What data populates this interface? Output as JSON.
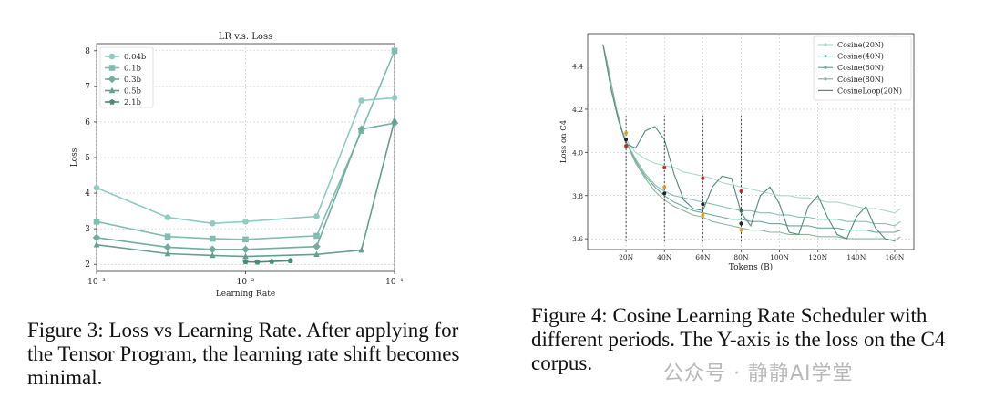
{
  "chart_data": [
    {
      "type": "line",
      "title": "LR v.s. Loss",
      "xlabel": "Learning Rate",
      "ylabel": "Loss",
      "x_scale": "log",
      "xlim": [
        0.001,
        0.1
      ],
      "ylim": [
        1.8,
        8.2
      ],
      "x_ticks": [
        "10⁻³",
        "10⁻²",
        "10⁻¹"
      ],
      "y_ticks": [
        "2",
        "3",
        "4",
        "5",
        "6",
        "7",
        "8"
      ],
      "grid": true,
      "legend_position": "top-left",
      "series": [
        {
          "name": "0.04b",
          "marker": "circle",
          "color": "#8ecbc1",
          "x": [
            0.001,
            0.003,
            0.006,
            0.01,
            0.03,
            0.06,
            0.1
          ],
          "y": [
            4.15,
            3.32,
            3.15,
            3.2,
            3.35,
            6.6,
            6.68
          ]
        },
        {
          "name": "0.1b",
          "marker": "square",
          "color": "#7fbdb1",
          "x": [
            0.001,
            0.003,
            0.006,
            0.01,
            0.03,
            0.06,
            0.1
          ],
          "y": [
            3.2,
            2.78,
            2.72,
            2.7,
            2.8,
            5.75,
            8.0
          ]
        },
        {
          "name": "0.3b",
          "marker": "diamond",
          "color": "#70ae9f",
          "x": [
            0.001,
            0.003,
            0.006,
            0.01,
            0.03,
            0.06,
            0.1
          ],
          "y": [
            2.75,
            2.48,
            2.42,
            2.42,
            2.5,
            5.8,
            5.97
          ]
        },
        {
          "name": "0.5b",
          "marker": "triangle",
          "color": "#639f90",
          "x": [
            0.001,
            0.003,
            0.006,
            0.01,
            0.03,
            0.06,
            0.1
          ],
          "y": [
            2.55,
            2.3,
            2.25,
            2.22,
            2.28,
            2.4,
            6.05
          ]
        },
        {
          "name": "2.1b",
          "marker": "pentagon",
          "color": "#4e8a78",
          "x": [
            0.01,
            0.012,
            0.015,
            0.02
          ],
          "y": [
            2.07,
            2.06,
            2.08,
            2.1
          ]
        }
      ]
    },
    {
      "type": "line",
      "title": "",
      "xlabel": "Tokens (B)",
      "ylabel": "Loss on C4",
      "xlim": [
        0,
        170
      ],
      "ylim": [
        3.55,
        4.55
      ],
      "x_ticks": [
        "20N",
        "40N",
        "60N",
        "80N",
        "100N",
        "120N",
        "140N",
        "160N"
      ],
      "x_tick_values": [
        20,
        40,
        60,
        80,
        100,
        120,
        140,
        160
      ],
      "y_ticks": [
        "3.6",
        "3.8",
        "4.0",
        "4.2",
        "4.4"
      ],
      "y_tick_values": [
        3.6,
        3.8,
        4.0,
        4.2,
        4.4
      ],
      "grid": true,
      "legend_position": "top-right",
      "series": [
        {
          "name": "Cosine(20N)",
          "color": "#a8d8cc",
          "x": [
            8,
            10,
            12,
            15,
            18,
            20,
            25,
            30,
            35,
            40,
            45,
            50,
            55,
            60,
            65,
            70,
            75,
            80,
            85,
            90,
            95,
            100,
            105,
            110,
            115,
            120,
            125,
            130,
            135,
            140,
            145,
            150,
            155,
            160,
            163
          ],
          "y": [
            4.5,
            4.42,
            4.33,
            4.2,
            4.1,
            4.06,
            4.0,
            3.97,
            3.95,
            3.94,
            3.93,
            3.91,
            3.9,
            3.89,
            3.88,
            3.86,
            3.85,
            3.84,
            3.83,
            3.82,
            3.81,
            3.8,
            3.8,
            3.79,
            3.79,
            3.78,
            3.77,
            3.77,
            3.76,
            3.75,
            3.74,
            3.74,
            3.73,
            3.72,
            3.74
          ]
        },
        {
          "name": "Cosine(40N)",
          "color": "#86c1b4",
          "x": [
            8,
            10,
            12,
            15,
            18,
            20,
            25,
            30,
            35,
            40,
            45,
            50,
            55,
            60,
            65,
            70,
            75,
            80,
            85,
            90,
            95,
            100,
            105,
            110,
            115,
            120,
            125,
            130,
            135,
            140,
            145,
            150,
            155,
            160,
            163
          ],
          "y": [
            4.5,
            4.42,
            4.33,
            4.2,
            4.1,
            4.05,
            3.97,
            3.9,
            3.85,
            3.82,
            3.8,
            3.79,
            3.78,
            3.77,
            3.76,
            3.75,
            3.74,
            3.73,
            3.73,
            3.72,
            3.72,
            3.71,
            3.71,
            3.7,
            3.7,
            3.69,
            3.69,
            3.69,
            3.68,
            3.68,
            3.68,
            3.67,
            3.67,
            3.66,
            3.68
          ]
        },
        {
          "name": "Cosine(60N)",
          "color": "#6aaa9b",
          "x": [
            8,
            10,
            12,
            15,
            18,
            20,
            25,
            30,
            35,
            40,
            45,
            50,
            55,
            60,
            65,
            70,
            75,
            80,
            85,
            90,
            95,
            100,
            105,
            110,
            115,
            120,
            125,
            130,
            135,
            140,
            145,
            150,
            155,
            160,
            163
          ],
          "y": [
            4.5,
            4.42,
            4.33,
            4.2,
            4.1,
            4.05,
            3.96,
            3.89,
            3.84,
            3.8,
            3.77,
            3.75,
            3.73,
            3.72,
            3.71,
            3.7,
            3.69,
            3.69,
            3.68,
            3.68,
            3.67,
            3.67,
            3.66,
            3.66,
            3.66,
            3.65,
            3.65,
            3.65,
            3.64,
            3.64,
            3.64,
            3.63,
            3.63,
            3.63,
            3.64
          ]
        },
        {
          "name": "Cosine(80N)",
          "color": "#8fb39a",
          "x": [
            8,
            10,
            12,
            15,
            18,
            20,
            25,
            30,
            35,
            40,
            45,
            50,
            55,
            60,
            65,
            70,
            75,
            80,
            85,
            90,
            95,
            100,
            105,
            110,
            115,
            120,
            125,
            130,
            135,
            140,
            145,
            150,
            155,
            160,
            163
          ],
          "y": [
            4.5,
            4.42,
            4.33,
            4.2,
            4.1,
            4.05,
            3.95,
            3.88,
            3.82,
            3.78,
            3.75,
            3.73,
            3.71,
            3.7,
            3.68,
            3.67,
            3.66,
            3.65,
            3.64,
            3.64,
            3.63,
            3.63,
            3.62,
            3.62,
            3.62,
            3.61,
            3.61,
            3.61,
            3.6,
            3.6,
            3.6,
            3.6,
            3.6,
            3.59,
            3.61
          ]
        },
        {
          "name": "CosineLoop(20N)",
          "color": "#4f8d7b",
          "x": [
            8,
            12,
            16,
            20,
            25,
            30,
            35,
            40,
            45,
            50,
            55,
            60,
            65,
            70,
            75,
            80,
            85,
            90,
            95,
            100,
            105,
            110,
            115,
            120,
            125,
            130,
            135,
            140,
            145,
            150,
            155,
            160
          ],
          "y": [
            4.5,
            4.3,
            4.15,
            4.04,
            4.02,
            4.1,
            4.12,
            4.06,
            3.9,
            3.78,
            3.74,
            3.73,
            3.84,
            3.89,
            3.88,
            3.72,
            3.66,
            3.8,
            3.84,
            3.76,
            3.63,
            3.62,
            3.75,
            3.8,
            3.7,
            3.62,
            3.6,
            3.7,
            3.75,
            3.65,
            3.6,
            3.59
          ]
        }
      ],
      "markers": [
        {
          "x": 20,
          "y": 4.03,
          "color": "#cc2222"
        },
        {
          "x": 20,
          "y": 4.06,
          "color": "#222222"
        },
        {
          "x": 20,
          "y": 4.09,
          "color": "#e0a020"
        },
        {
          "x": 40,
          "y": 3.93,
          "color": "#cc2222"
        },
        {
          "x": 40,
          "y": 3.84,
          "color": "#e0a020"
        },
        {
          "x": 40,
          "y": 3.81,
          "color": "#222222"
        },
        {
          "x": 60,
          "y": 3.88,
          "color": "#cc2222"
        },
        {
          "x": 60,
          "y": 3.76,
          "color": "#222222"
        },
        {
          "x": 60,
          "y": 3.71,
          "color": "#e0a020"
        },
        {
          "x": 80,
          "y": 3.82,
          "color": "#cc2222"
        },
        {
          "x": 80,
          "y": 3.73,
          "color": "#2a7a5a"
        },
        {
          "x": 80,
          "y": 3.67,
          "color": "#222222"
        },
        {
          "x": 80,
          "y": 3.64,
          "color": "#e0a020"
        }
      ],
      "dashed_x": [
        20,
        40,
        60,
        80
      ]
    }
  ],
  "captions": {
    "fig3": "Figure 3: Loss vs Learning Rate. After applying for the Tensor Program, the learning rate shift becomes minimal.",
    "fig4": "Figure 4: Cosine Learning Rate Scheduler with different periods. The Y-axis is the loss on the C4 corpus."
  },
  "watermark": "公众号 · 静静AI学堂"
}
